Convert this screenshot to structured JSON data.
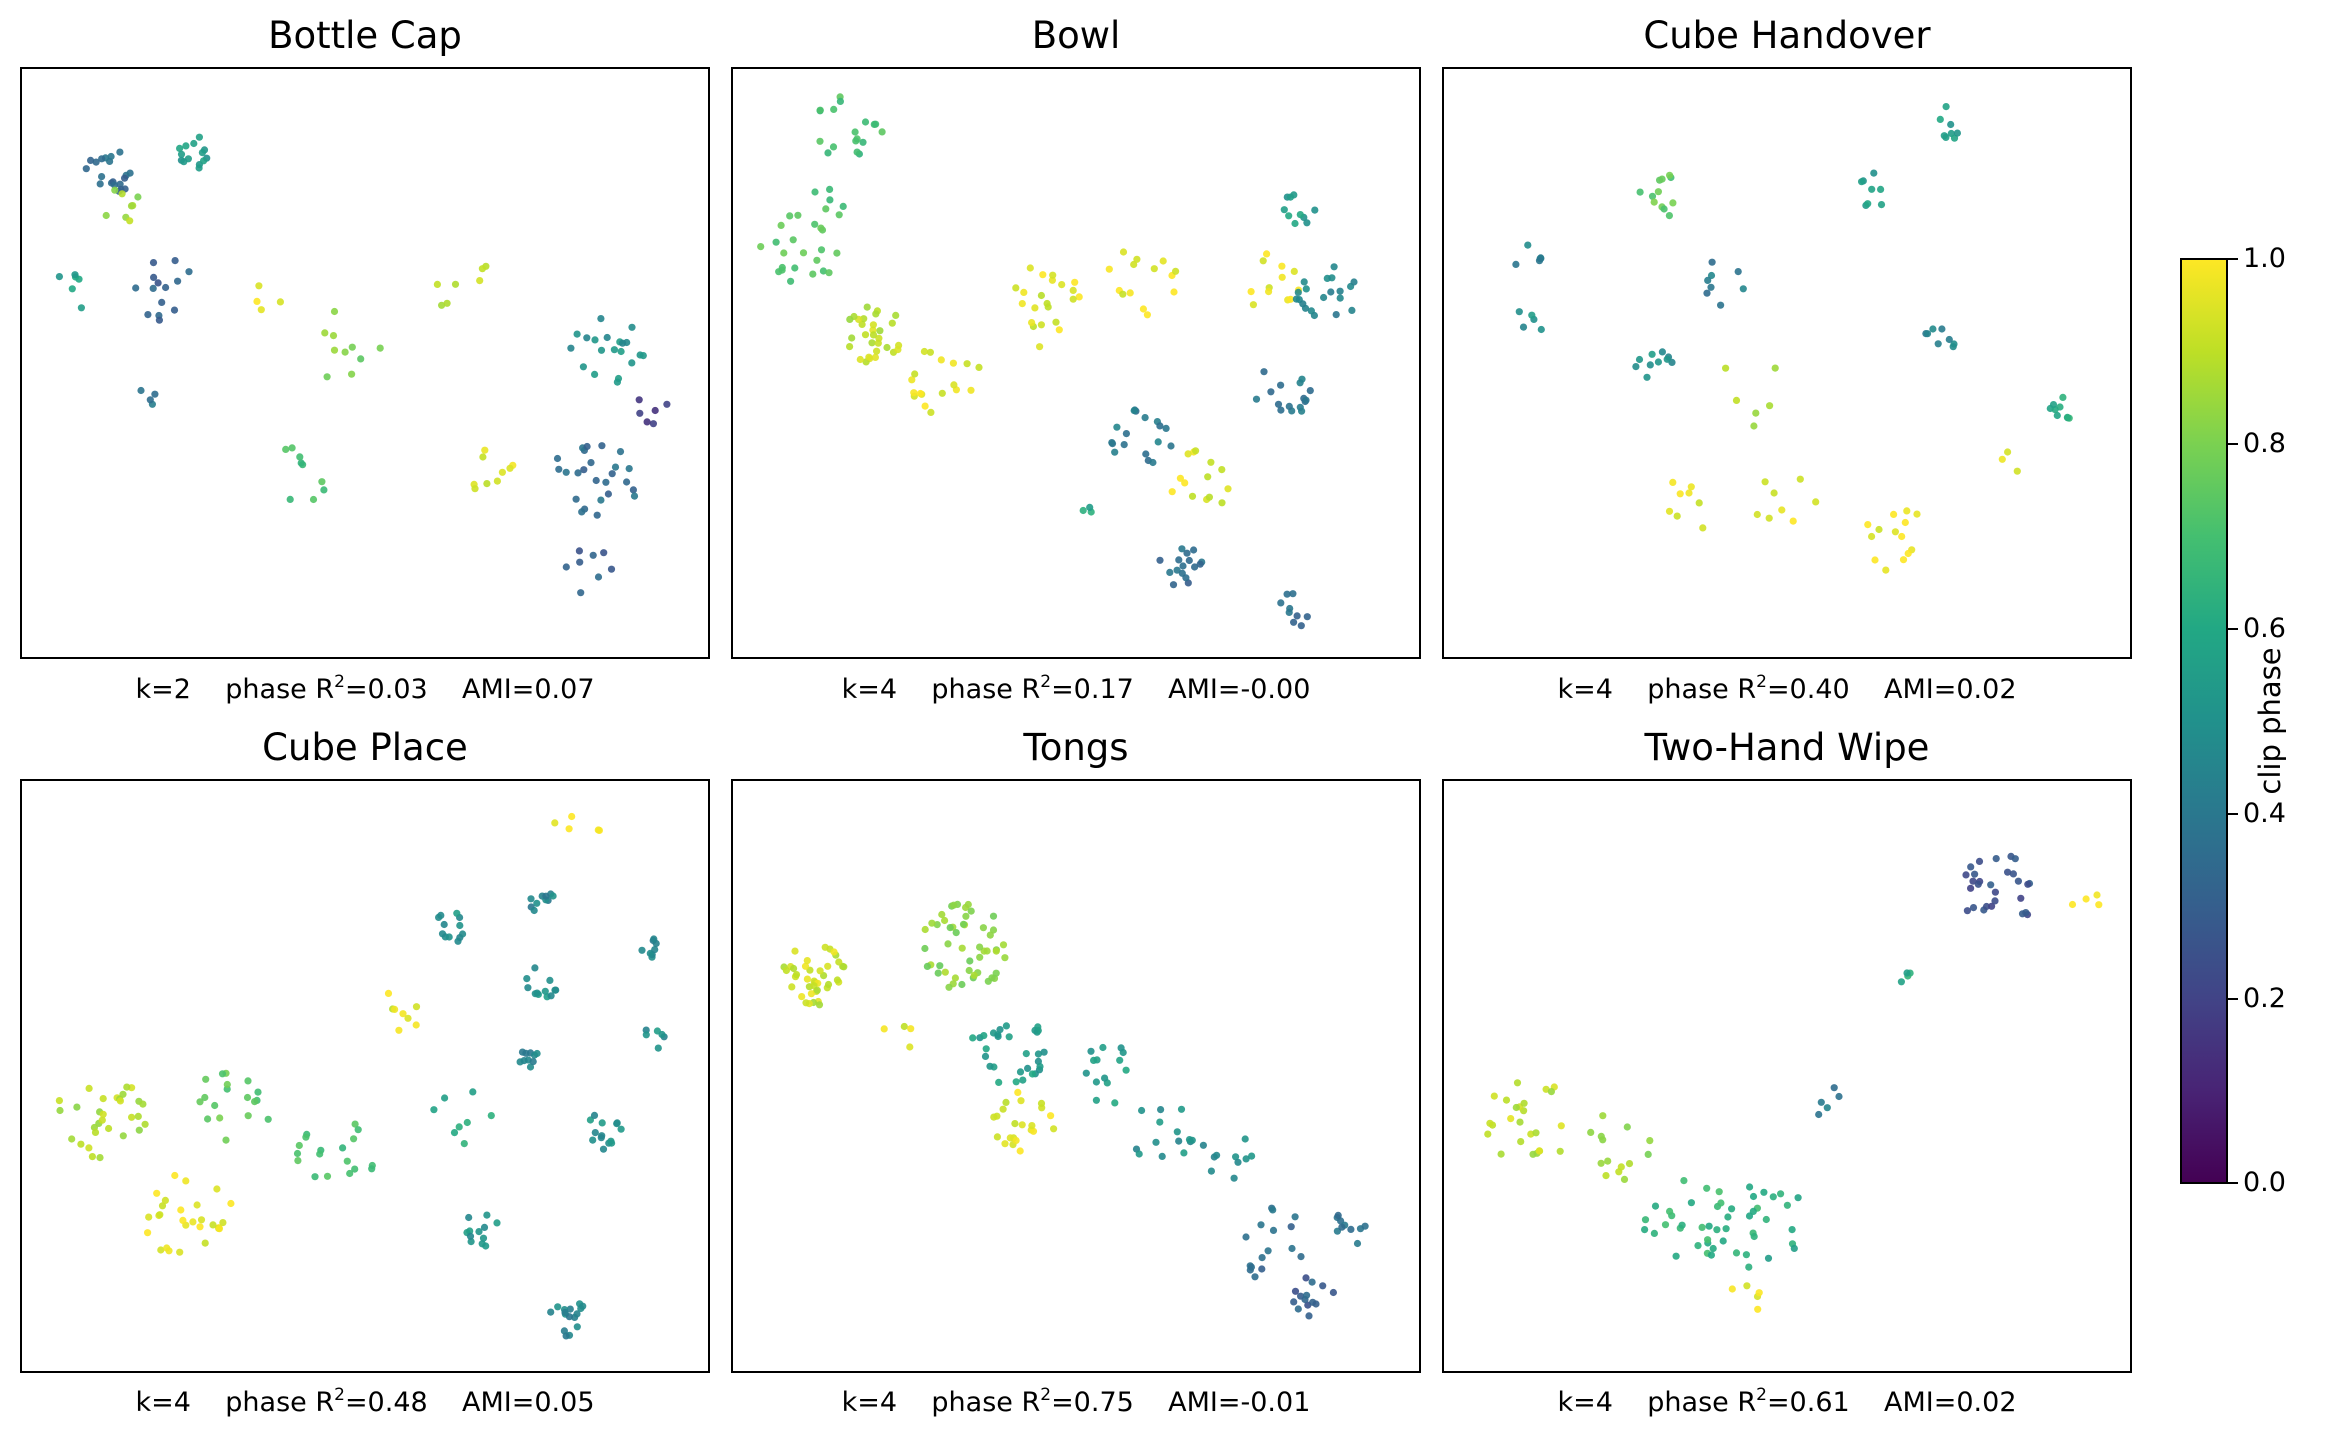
{
  "colorbar": {
    "label": "clip phase",
    "ticks": [
      "0.0",
      "0.2",
      "0.4",
      "0.6",
      "0.8",
      "1.0"
    ],
    "colors": [
      "#440154",
      "#482475",
      "#414487",
      "#355f8d",
      "#2a788e",
      "#21918c",
      "#22a884",
      "#44bf70",
      "#7ad151",
      "#bddf26",
      "#fde725"
    ]
  },
  "chart_data": [
    {
      "type": "scatter",
      "title": "Bottle Cap",
      "caption": {
        "k": "k=2",
        "phase_prefix": "phase R",
        "phase_value": "=0.03",
        "ami": "AMI=0.07"
      },
      "xlim": [
        0,
        100
      ],
      "ylim": [
        0,
        100
      ],
      "clusters": [
        {
          "cx": 11,
          "cy": 84,
          "r": 4,
          "n": 20,
          "c": 0.35
        },
        {
          "cx": 24,
          "cy": 88,
          "r": 3,
          "n": 14,
          "c": 0.55
        },
        {
          "cx": 13,
          "cy": 78,
          "r": 3,
          "n": 8,
          "c": 0.85
        },
        {
          "cx": 20,
          "cy": 63,
          "r": 6,
          "n": 14,
          "c": 0.3
        },
        {
          "cx": 6,
          "cy": 62,
          "r": 4,
          "n": 6,
          "c": 0.55
        },
        {
          "cx": 18,
          "cy": 45,
          "r": 3,
          "n": 4,
          "c": 0.4
        },
        {
          "cx": 35,
          "cy": 62,
          "r": 3,
          "n": 4,
          "c": 0.95
        },
        {
          "cx": 47,
          "cy": 53,
          "r": 6,
          "n": 10,
          "c": 0.8
        },
        {
          "cx": 40,
          "cy": 30,
          "r": 5,
          "n": 9,
          "c": 0.7
        },
        {
          "cx": 65,
          "cy": 64,
          "r": 5,
          "n": 7,
          "c": 0.9
        },
        {
          "cx": 68,
          "cy": 32,
          "r": 5,
          "n": 9,
          "c": 0.95
        },
        {
          "cx": 87,
          "cy": 52,
          "r": 6,
          "n": 20,
          "c": 0.5
        },
        {
          "cx": 85,
          "cy": 30,
          "r": 7,
          "n": 25,
          "c": 0.35
        },
        {
          "cx": 84,
          "cy": 13,
          "r": 4,
          "n": 8,
          "c": 0.3
        },
        {
          "cx": 93,
          "cy": 42,
          "r": 3,
          "n": 6,
          "c": 0.2
        }
      ]
    },
    {
      "type": "scatter",
      "title": "Bowl",
      "caption": {
        "k": "k=4",
        "phase_prefix": "phase R",
        "phase_value": "=0.17",
        "ami": "AMI=-0.00"
      },
      "xlim": [
        0,
        100
      ],
      "ylim": [
        0,
        100
      ],
      "clusters": [
        {
          "cx": 16,
          "cy": 92,
          "r": 6,
          "n": 18,
          "c": 0.7
        },
        {
          "cx": 12,
          "cy": 78,
          "r": 3,
          "n": 6,
          "c": 0.7
        },
        {
          "cx": 8,
          "cy": 70,
          "r": 6,
          "n": 22,
          "c": 0.72
        },
        {
          "cx": 19,
          "cy": 55,
          "r": 5,
          "n": 30,
          "c": 0.9
        },
        {
          "cx": 30,
          "cy": 47,
          "r": 6,
          "n": 18,
          "c": 0.97
        },
        {
          "cx": 45,
          "cy": 60,
          "r": 7,
          "n": 22,
          "c": 0.95
        },
        {
          "cx": 60,
          "cy": 65,
          "r": 6,
          "n": 14,
          "c": 0.97
        },
        {
          "cx": 79,
          "cy": 64,
          "r": 5,
          "n": 12,
          "c": 0.98
        },
        {
          "cx": 84,
          "cy": 78,
          "r": 3,
          "n": 10,
          "c": 0.55
        },
        {
          "cx": 88,
          "cy": 62,
          "r": 5,
          "n": 20,
          "c": 0.45
        },
        {
          "cx": 82,
          "cy": 45,
          "r": 5,
          "n": 16,
          "c": 0.4
        },
        {
          "cx": 60,
          "cy": 37,
          "r": 5,
          "n": 18,
          "c": 0.4
        },
        {
          "cx": 69,
          "cy": 29,
          "r": 5,
          "n": 14,
          "c": 0.95
        },
        {
          "cx": 66,
          "cy": 14,
          "r": 4,
          "n": 16,
          "c": 0.35
        },
        {
          "cx": 83,
          "cy": 6,
          "r": 3,
          "n": 9,
          "c": 0.35
        },
        {
          "cx": 52,
          "cy": 24,
          "r": 1,
          "n": 3,
          "c": 0.6
        }
      ]
    },
    {
      "type": "scatter",
      "title": "Cube Handover",
      "caption": {
        "k": "k=4",
        "phase_prefix": "phase R",
        "phase_value": "=0.40",
        "ami": "AMI=0.02"
      },
      "xlim": [
        0,
        100
      ],
      "ylim": [
        0,
        100
      ],
      "clusters": [
        {
          "cx": 10,
          "cy": 68,
          "r": 3,
          "n": 6,
          "c": 0.45
        },
        {
          "cx": 11,
          "cy": 58,
          "r": 3,
          "n": 5,
          "c": 0.5
        },
        {
          "cx": 30,
          "cy": 80,
          "r": 4,
          "n": 12,
          "c": 0.75
        },
        {
          "cx": 40,
          "cy": 64,
          "r": 4,
          "n": 8,
          "c": 0.4
        },
        {
          "cx": 30,
          "cy": 49,
          "r": 3,
          "n": 10,
          "c": 0.5
        },
        {
          "cx": 63,
          "cy": 81,
          "r": 3,
          "n": 8,
          "c": 0.55
        },
        {
          "cx": 75,
          "cy": 93,
          "r": 3,
          "n": 8,
          "c": 0.55
        },
        {
          "cx": 73,
          "cy": 53,
          "r": 3,
          "n": 8,
          "c": 0.45
        },
        {
          "cx": 92,
          "cy": 42,
          "r": 2,
          "n": 9,
          "c": 0.6
        },
        {
          "cx": 36,
          "cy": 25,
          "r": 5,
          "n": 8,
          "c": 0.95
        },
        {
          "cx": 50,
          "cy": 25,
          "r": 5,
          "n": 8,
          "c": 0.95
        },
        {
          "cx": 65,
          "cy": 18,
          "r": 7,
          "n": 14,
          "c": 0.98
        },
        {
          "cx": 45,
          "cy": 45,
          "r": 6,
          "n": 6,
          "c": 0.9
        },
        {
          "cx": 83,
          "cy": 33,
          "r": 3,
          "n": 3,
          "c": 0.98
        }
      ]
    },
    {
      "type": "scatter",
      "title": "Cube Place",
      "caption": {
        "k": "k=4",
        "phase_prefix": "phase R",
        "phase_value": "=0.48",
        "ami": "AMI=0.05"
      },
      "xlim": [
        0,
        100
      ],
      "ylim": [
        0,
        100
      ],
      "clusters": [
        {
          "cx": 10,
          "cy": 43,
          "r": 7,
          "n": 30,
          "c": 0.88
        },
        {
          "cx": 23,
          "cy": 25,
          "r": 7,
          "n": 28,
          "c": 0.97
        },
        {
          "cx": 30,
          "cy": 45,
          "r": 6,
          "n": 18,
          "c": 0.75
        },
        {
          "cx": 46,
          "cy": 38,
          "r": 7,
          "n": 18,
          "c": 0.7
        },
        {
          "cx": 55,
          "cy": 62,
          "r": 4,
          "n": 8,
          "c": 0.95
        },
        {
          "cx": 63,
          "cy": 77,
          "r": 3,
          "n": 12,
          "c": 0.5
        },
        {
          "cx": 77,
          "cy": 81,
          "r": 2,
          "n": 10,
          "c": 0.45
        },
        {
          "cx": 77,
          "cy": 67,
          "r": 3,
          "n": 12,
          "c": 0.5
        },
        {
          "cx": 75,
          "cy": 53,
          "r": 2,
          "n": 10,
          "c": 0.45
        },
        {
          "cx": 86,
          "cy": 40,
          "r": 3,
          "n": 14,
          "c": 0.5
        },
        {
          "cx": 94,
          "cy": 73,
          "r": 2,
          "n": 8,
          "c": 0.45
        },
        {
          "cx": 94,
          "cy": 57,
          "r": 2,
          "n": 6,
          "c": 0.5
        },
        {
          "cx": 68,
          "cy": 23,
          "r": 3,
          "n": 12,
          "c": 0.5
        },
        {
          "cx": 81,
          "cy": 7,
          "r": 3,
          "n": 16,
          "c": 0.45
        },
        {
          "cx": 82,
          "cy": 95,
          "r": 4,
          "n": 5,
          "c": 0.98
        },
        {
          "cx": 65,
          "cy": 42,
          "r": 5,
          "n": 8,
          "c": 0.6
        }
      ]
    },
    {
      "type": "scatter",
      "title": "Tongs",
      "caption": {
        "k": "k=4",
        "phase_prefix": "phase R",
        "phase_value": "=0.75",
        "ami": "AMI=-0.01"
      },
      "xlim": [
        0,
        100
      ],
      "ylim": [
        0,
        100
      ],
      "clusters": [
        {
          "cx": 10,
          "cy": 68,
          "r": 5,
          "n": 40,
          "c": 0.92
        },
        {
          "cx": 33,
          "cy": 73,
          "r": 7,
          "n": 50,
          "c": 0.82
        },
        {
          "cx": 40,
          "cy": 55,
          "r": 6,
          "n": 30,
          "c": 0.55
        },
        {
          "cx": 42,
          "cy": 42,
          "r": 5,
          "n": 22,
          "c": 0.95
        },
        {
          "cx": 55,
          "cy": 50,
          "r": 5,
          "n": 14,
          "c": 0.55
        },
        {
          "cx": 63,
          "cy": 40,
          "r": 5,
          "n": 14,
          "c": 0.5
        },
        {
          "cx": 73,
          "cy": 36,
          "r": 4,
          "n": 10,
          "c": 0.5
        },
        {
          "cx": 80,
          "cy": 20,
          "r": 6,
          "n": 16,
          "c": 0.35
        },
        {
          "cx": 92,
          "cy": 23,
          "r": 3,
          "n": 10,
          "c": 0.4
        },
        {
          "cx": 86,
          "cy": 10,
          "r": 4,
          "n": 14,
          "c": 0.3
        },
        {
          "cx": 23,
          "cy": 57,
          "r": 3,
          "n": 4,
          "c": 0.95
        }
      ]
    },
    {
      "type": "scatter",
      "title": "Two-Hand Wipe",
      "caption": {
        "k": "k=4",
        "phase_prefix": "phase R",
        "phase_value": "=0.61",
        "ami": "AMI=0.02"
      },
      "xlim": [
        0,
        100
      ],
      "ylim": [
        0,
        100
      ],
      "clusters": [
        {
          "cx": 11,
          "cy": 42,
          "r": 7,
          "n": 25,
          "c": 0.9
        },
        {
          "cx": 25,
          "cy": 38,
          "r": 6,
          "n": 14,
          "c": 0.85
        },
        {
          "cx": 37,
          "cy": 25,
          "r": 9,
          "n": 35,
          "c": 0.65
        },
        {
          "cx": 48,
          "cy": 22,
          "r": 7,
          "n": 14,
          "c": 0.6
        },
        {
          "cx": 57,
          "cy": 45,
          "r": 3,
          "n": 5,
          "c": 0.4
        },
        {
          "cx": 68,
          "cy": 67,
          "r": 2,
          "n": 4,
          "c": 0.6
        },
        {
          "cx": 82,
          "cy": 83,
          "r": 6,
          "n": 28,
          "c": 0.25
        },
        {
          "cx": 95,
          "cy": 80,
          "r": 3,
          "n": 4,
          "c": 0.98
        },
        {
          "cx": 43,
          "cy": 10,
          "r": 4,
          "n": 5,
          "c": 0.95
        }
      ]
    }
  ]
}
